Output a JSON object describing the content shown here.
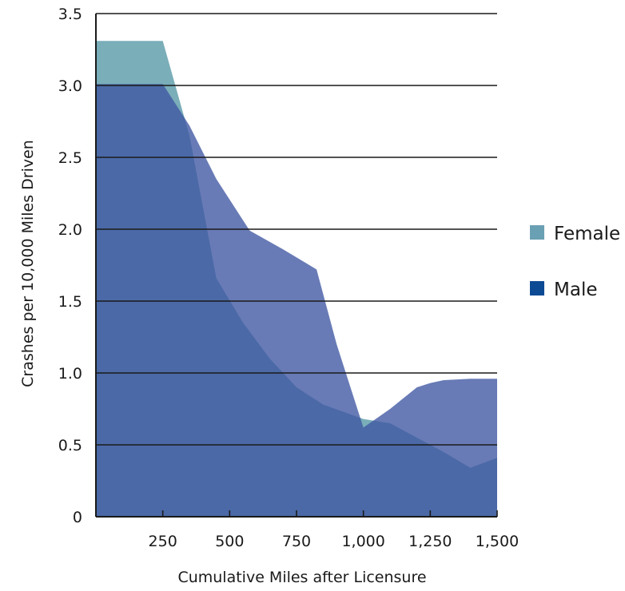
{
  "chart_data": {
    "type": "area",
    "xlabel": "Cumulative Miles after Licensure",
    "ylabel": "Crashes per 10,000 Miles Driven",
    "xlim": [
      0,
      1500
    ],
    "ylim": [
      0,
      3.5
    ],
    "x_ticks": [
      250,
      500,
      750,
      1000,
      1250,
      1500
    ],
    "x_tick_labels": [
      "250",
      "500",
      "750",
      "1,000",
      "1,250",
      "1,500"
    ],
    "y_ticks": [
      0,
      0.5,
      1.0,
      1.5,
      2.0,
      2.5,
      3.0,
      3.5
    ],
    "y_tick_labels": [
      "0",
      "0.5",
      "1.0",
      "1.5",
      "2.0",
      "2.5",
      "3.0",
      "3.5"
    ],
    "grid": "horizontal",
    "legend_position": "right",
    "series": [
      {
        "name": "Female",
        "color": "#7aaeb9",
        "x": [
          0,
          250,
          350,
          450,
          550,
          650,
          750,
          850,
          1000,
          1100,
          1200,
          1300,
          1400,
          1500
        ],
        "values": [
          3.31,
          3.31,
          2.65,
          1.66,
          1.35,
          1.1,
          0.9,
          0.78,
          0.68,
          0.65,
          0.55,
          0.45,
          0.34,
          0.41
        ]
      },
      {
        "name": "Male",
        "color": "#3d56a1",
        "x": [
          0,
          250,
          350,
          450,
          575,
          700,
          825,
          900,
          1000,
          1100,
          1200,
          1250,
          1300,
          1400,
          1500
        ],
        "values": [
          3.01,
          3.01,
          2.72,
          2.35,
          1.99,
          1.86,
          1.72,
          1.2,
          0.62,
          0.75,
          0.9,
          0.93,
          0.95,
          0.96,
          0.96
        ]
      }
    ]
  },
  "legend": {
    "items": [
      {
        "label": "Female",
        "color": "#6aa0b3"
      },
      {
        "label": "Male",
        "color": "#0d4a94"
      }
    ]
  }
}
